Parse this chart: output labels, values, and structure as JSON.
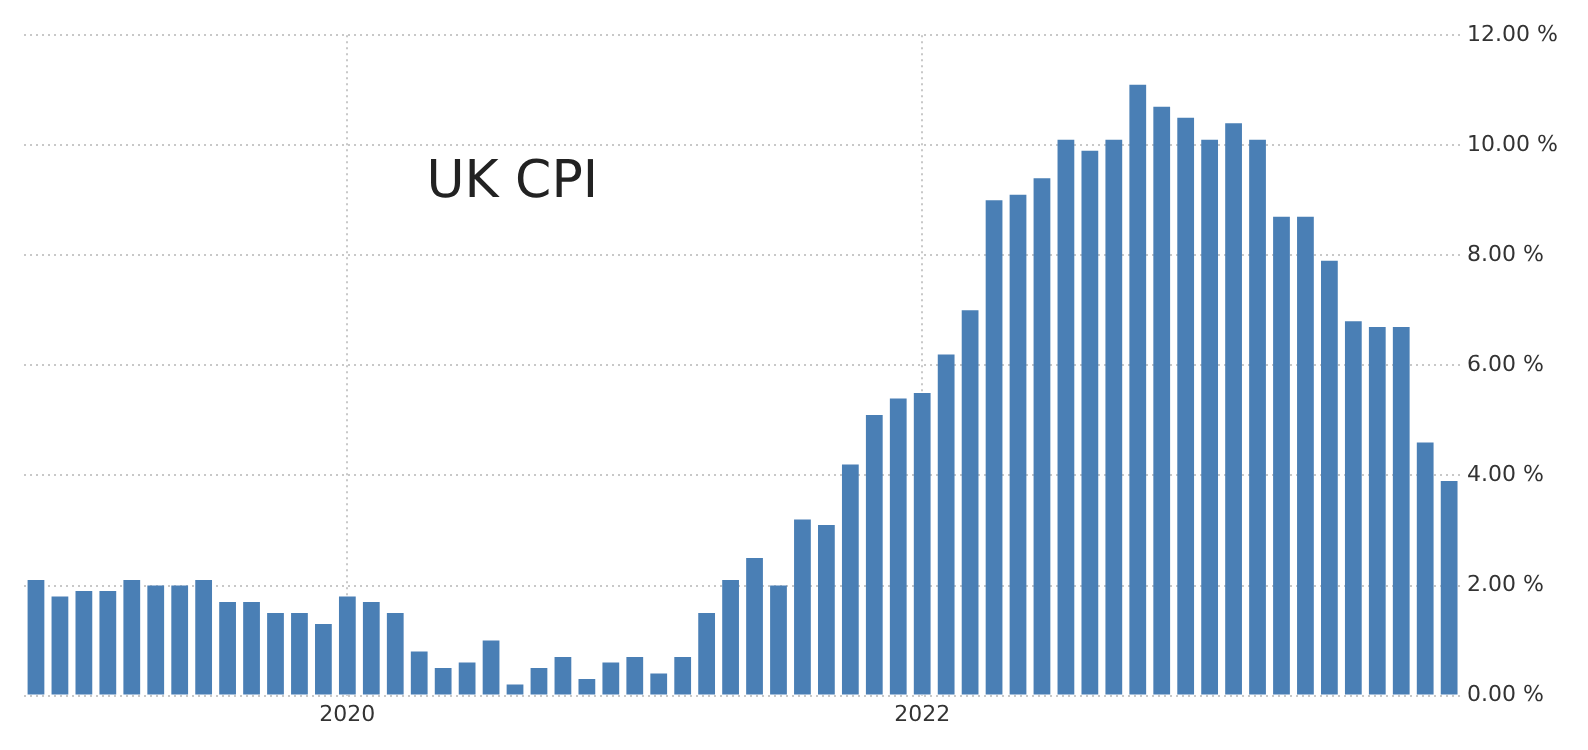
{
  "chart_data": {
    "type": "bar",
    "annotations": [
      "UK CPI"
    ],
    "categories": [
      null,
      null,
      null,
      null,
      null,
      null,
      null,
      null,
      null,
      null,
      null,
      null,
      null,
      "2020",
      null,
      null,
      null,
      null,
      null,
      null,
      null,
      null,
      null,
      null,
      null,
      null,
      null,
      null,
      null,
      null,
      null,
      null,
      null,
      null,
      null,
      null,
      null,
      "2022",
      null,
      null,
      null,
      null,
      null,
      null,
      null,
      null,
      null,
      null,
      null,
      null,
      null,
      null,
      null,
      null,
      null,
      null,
      null,
      null,
      null,
      null
    ],
    "values": [
      2.1,
      1.8,
      1.9,
      1.9,
      2.1,
      2.0,
      2.0,
      2.1,
      1.7,
      1.7,
      1.5,
      1.5,
      1.3,
      1.8,
      1.7,
      1.5,
      0.8,
      0.5,
      0.6,
      1.0,
      0.2,
      0.5,
      0.7,
      0.3,
      0.6,
      0.7,
      0.4,
      0.7,
      1.5,
      2.1,
      2.5,
      2.0,
      3.2,
      3.1,
      4.2,
      5.1,
      5.4,
      5.5,
      6.2,
      7.0,
      9.0,
      9.1,
      9.4,
      10.1,
      9.9,
      10.1,
      11.1,
      10.7,
      10.5,
      10.1,
      10.4,
      10.1,
      8.7,
      8.7,
      7.9,
      6.8,
      6.7,
      6.7,
      4.6,
      3.9
    ],
    "color": "#4a7fb5",
    "ylim": [
      0,
      12
    ],
    "yticks": [
      {
        "value": 0,
        "label": "0.00 %"
      },
      {
        "value": 2,
        "label": "2.00 %"
      },
      {
        "value": 4,
        "label": "4.00 %"
      },
      {
        "value": 6,
        "label": "6.00 %"
      },
      {
        "value": 8,
        "label": "8.00 %"
      },
      {
        "value": 10,
        "label": "10.00 %"
      },
      {
        "value": 12,
        "label": "12.00 %"
      }
    ],
    "grid": true
  }
}
